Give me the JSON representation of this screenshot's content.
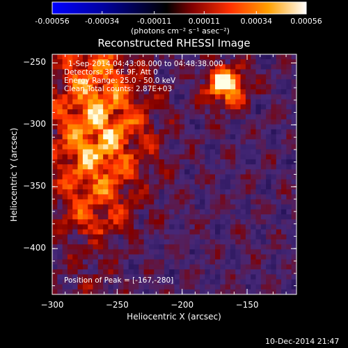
{
  "colorbar": {
    "tick_labels": [
      "-0.00056",
      "-0.00034",
      "-0.00011",
      "0.00011",
      "0.00034",
      "0.00056"
    ],
    "units": "(photons cm⁻² s⁻¹ asec⁻²)",
    "range": [
      -0.00056,
      0.00056
    ],
    "colors": [
      "#0000ff",
      "#0000a0",
      "#000000",
      "#800000",
      "#ff3000",
      "#ffa000",
      "#ffffff"
    ]
  },
  "chart_data": {
    "type": "heatmap",
    "title": "Reconstructed RHESSI Image",
    "xlabel": "Heliocentric X (arcsec)",
    "ylabel": "Heliocentric Y (arcsec)",
    "xlim": [
      -300,
      -112
    ],
    "ylim": [
      -437,
      -243
    ],
    "xticks": [
      -300,
      -250,
      -200,
      -150
    ],
    "yticks": [
      -250,
      -300,
      -350,
      -400
    ],
    "xtick_labels": [
      "−300",
      "−250",
      "−200",
      "−150"
    ],
    "ytick_labels": [
      "−250",
      "−300",
      "−350",
      "−400"
    ],
    "peak": [
      -167,
      -280
    ]
  },
  "info": {
    "time": "1-Sep-2014 04:43:08.000 to 04:48:38.000",
    "detectors": "Detectors: 3F 6F 9F, Att 0",
    "energy": "Energy Range: 25.0 - 50.0 keV",
    "clean": "Clean    Total counts: 2.87E+03",
    "peak_text": "Position of Peak = [-167,-280]"
  },
  "footer": {
    "date": "10-Dec-2014 21:47"
  }
}
